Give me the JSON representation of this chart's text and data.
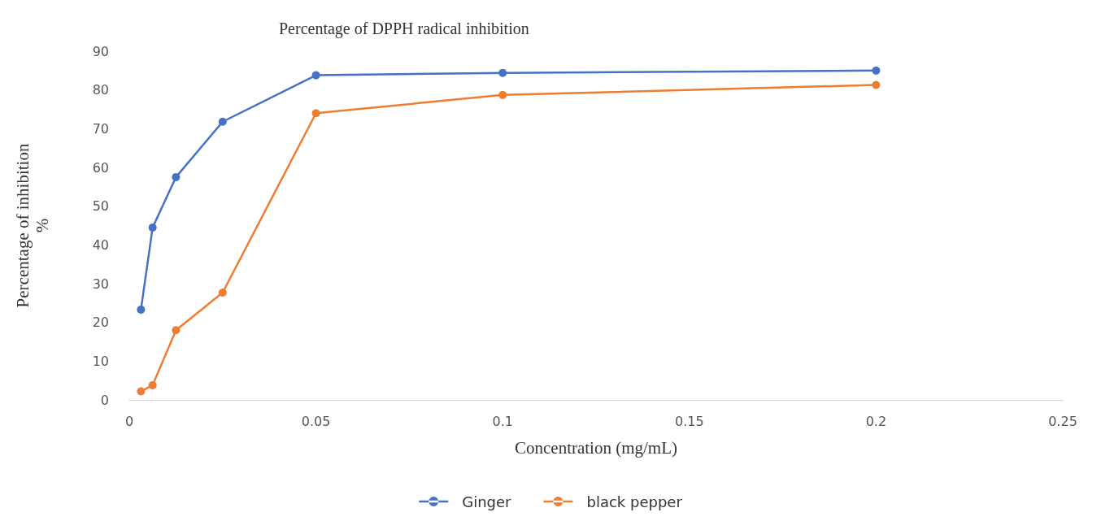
{
  "chart_data": {
    "type": "line",
    "title": "Percentage of DPPH radical inhibition",
    "xlabel": "Concentration (mg/mL)",
    "ylabel": "Percentage of inhibition\n%",
    "x": [
      0.003125,
      0.00625,
      0.0125,
      0.025,
      0.05,
      0.1,
      0.2
    ],
    "series": [
      {
        "name": "Ginger",
        "color": "#4472c4",
        "values": [
          23.3,
          44.5,
          57.5,
          71.8,
          83.8,
          84.4,
          85
        ]
      },
      {
        "name": "black pepper",
        "color": "#ed7d31",
        "values": [
          2.2,
          3.8,
          18,
          27.7,
          74,
          78.7,
          81.3
        ]
      }
    ],
    "xlim": [
      0,
      0.25
    ],
    "xticks": [
      0,
      0.05,
      0.1,
      0.15,
      0.2,
      0.25
    ],
    "ylim": [
      0,
      90
    ],
    "yticks": [
      0,
      10,
      20,
      30,
      40,
      50,
      60,
      70,
      80,
      90
    ],
    "grid": false,
    "legend": "bottom",
    "marker": "circle",
    "line_style": "solid"
  }
}
